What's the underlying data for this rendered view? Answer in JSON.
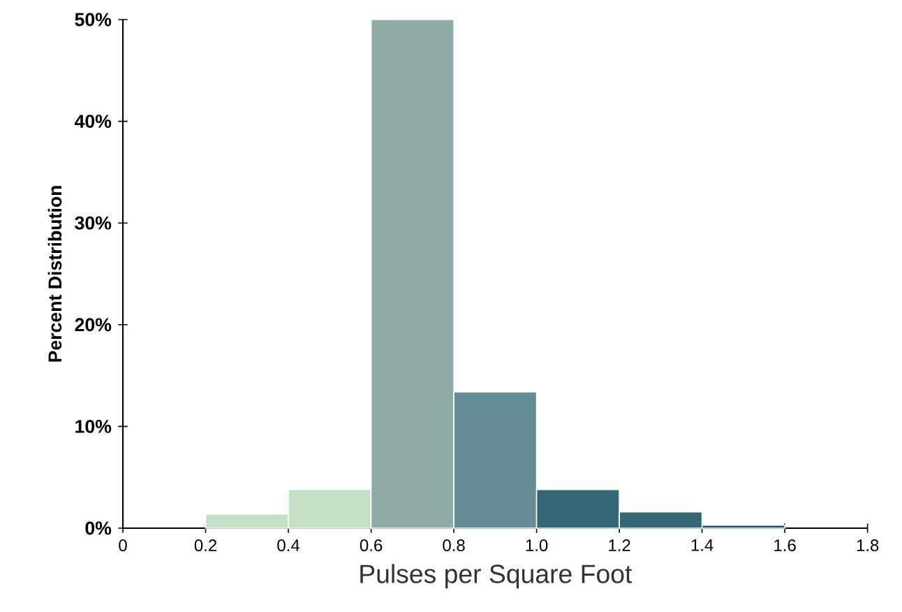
{
  "chart_data": {
    "type": "histogram",
    "xlabel": "Pulses per Square Foot",
    "ylabel": "Percent Distribution",
    "bins": [
      0.2,
      0.4,
      0.6,
      0.8,
      1.0,
      1.2,
      1.4,
      1.6
    ],
    "values": [
      1.4,
      3.8,
      50,
      13.4,
      3.8,
      1.6,
      0.3
    ],
    "colors": [
      "#c5dfc6",
      "#c5dfc6",
      "#8eaba8",
      "#658d98",
      "#356673",
      "#356673",
      "#1f5566"
    ],
    "xlim": [
      0,
      1.8
    ],
    "xticks": [
      0,
      0.2,
      0.4,
      0.6,
      0.8,
      {
        "value": 1.0,
        "label": "1.0"
      },
      1.2,
      1.4,
      1.6,
      1.8
    ],
    "ylim": [
      0,
      50
    ],
    "yticks": [
      {
        "value": 0,
        "label": "0%"
      },
      {
        "value": 10,
        "label": "10%"
      },
      {
        "value": 20,
        "label": "20%"
      },
      {
        "value": 30,
        "label": "30%"
      },
      {
        "value": 40,
        "label": "40%"
      },
      {
        "value": 50,
        "label": "50%"
      }
    ],
    "grid": false
  }
}
